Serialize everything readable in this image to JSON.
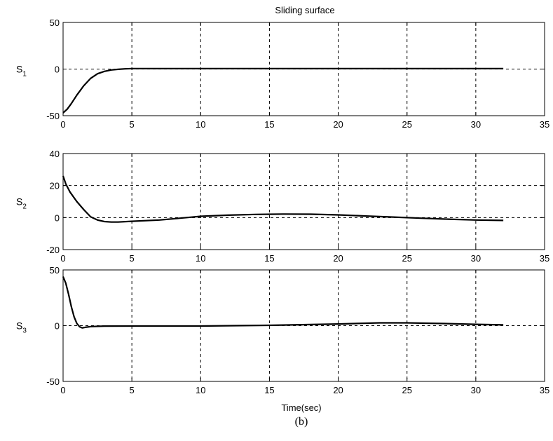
{
  "figure": {
    "title": "Sliding surface",
    "xlabel": "Time(sec)",
    "caption": "(b)"
  },
  "chart_data": [
    {
      "type": "line",
      "ylabel_base": "S",
      "ylabel_sub": "1",
      "xlim": [
        0,
        35
      ],
      "ylim": [
        -50,
        50
      ],
      "xticks": [
        0,
        5,
        10,
        15,
        20,
        25,
        30,
        35
      ],
      "yticks": [
        -50,
        0,
        50
      ],
      "grid": true,
      "series": [
        {
          "color": "#000000",
          "x": [
            0,
            0.3,
            0.6,
            1,
            1.5,
            2,
            2.5,
            3,
            3.5,
            4,
            4.5,
            5,
            10,
            15,
            20,
            25,
            30,
            32
          ],
          "y": [
            -47,
            -43,
            -37,
            -28,
            -18,
            -10,
            -5,
            -2.5,
            -1,
            -0.3,
            0.2,
            0.5,
            0.5,
            0.5,
            0.5,
            0.5,
            0.5,
            0.5
          ]
        }
      ]
    },
    {
      "type": "line",
      "ylabel_base": "S",
      "ylabel_sub": "2",
      "xlim": [
        0,
        35
      ],
      "ylim": [
        -20,
        40
      ],
      "xticks": [
        0,
        5,
        10,
        15,
        20,
        25,
        30,
        35
      ],
      "yticks": [
        -20,
        0,
        20,
        40
      ],
      "grid": true,
      "series": [
        {
          "color": "#000000",
          "x": [
            0,
            0.2,
            0.5,
            1,
            1.5,
            2,
            2.5,
            3,
            3.5,
            4,
            5,
            7,
            9,
            10,
            12,
            14,
            16,
            18,
            20,
            22,
            24,
            26,
            28,
            30,
            32
          ],
          "y": [
            26,
            21,
            16,
            10,
            5,
            0.5,
            -1.5,
            -2.5,
            -2.8,
            -2.8,
            -2.3,
            -1.5,
            0,
            0.8,
            1.5,
            2,
            2.2,
            2.1,
            1.7,
            1,
            0.3,
            -0.4,
            -1,
            -1.5,
            -1.8
          ]
        }
      ]
    },
    {
      "type": "line",
      "ylabel_base": "S",
      "ylabel_sub": "3",
      "xlim": [
        0,
        35
      ],
      "ylim": [
        -50,
        50
      ],
      "xticks": [
        0,
        5,
        10,
        15,
        20,
        25,
        30,
        35
      ],
      "yticks": [
        -50,
        0,
        50
      ],
      "grid": true,
      "series": [
        {
          "color": "#000000",
          "x": [
            0,
            0.2,
            0.4,
            0.6,
            0.8,
            1,
            1.2,
            1.4,
            1.6,
            2,
            3,
            5,
            10,
            15,
            20,
            23,
            25,
            28,
            30,
            32
          ],
          "y": [
            44,
            38,
            28,
            17,
            8,
            2,
            -1,
            -2,
            -1.5,
            -0.8,
            -0.4,
            -0.3,
            -0.3,
            0.3,
            1.5,
            2.5,
            2.5,
            1.8,
            1.2,
            0.7
          ]
        }
      ]
    }
  ]
}
